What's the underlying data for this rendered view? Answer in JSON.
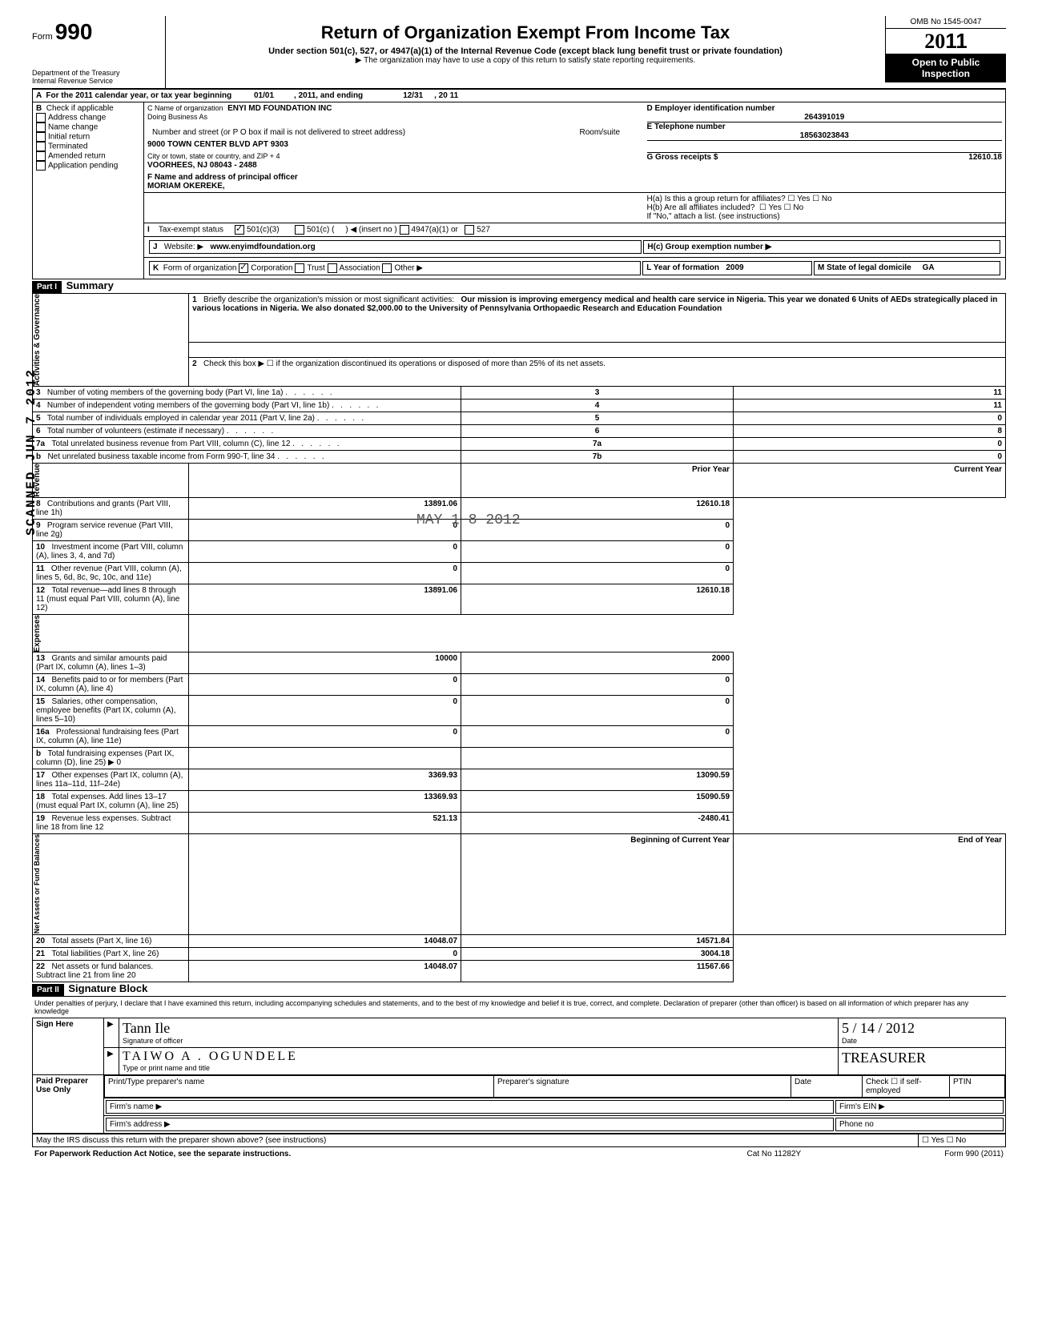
{
  "form": {
    "number_prefix": "Form",
    "number": "990",
    "title": "Return of Organization Exempt From Income Tax",
    "subtitle": "Under section 501(c), 527, or 4947(a)(1) of the Internal Revenue Code (except black lung benefit trust or private foundation)",
    "note": "▶ The organization may have to use a copy of this return to satisfy state reporting requirements.",
    "dept1": "Department of the Treasury",
    "dept2": "Internal Revenue Service",
    "omb": "OMB No  1545-0047",
    "year": "2011",
    "open": "Open to Public Inspection"
  },
  "header": {
    "A": "For the 2011 calendar year, or tax year beginning",
    "A_begin": "01/01",
    "A_mid": ", 2011, and ending",
    "A_end": "12/31",
    "A_y": ", 20",
    "A_yval": "11",
    "B": "Check if applicable",
    "B_items": [
      "Address change",
      "Name change",
      "Initial return",
      "Terminated",
      "Amended return",
      "Application pending"
    ],
    "C": "C Name of organization",
    "C_val": "ENYI MD FOUNDATION INC",
    "C_dba": "Doing Business As",
    "C_addr_label": "Number and street (or P O  box if mail is not delivered to street address)",
    "C_room": "Room/suite",
    "C_addr": "9000 TOWN CENTER BLVD APT 9303",
    "C_city_label": "City or town, state or country, and ZIP + 4",
    "C_city": "VOORHEES, NJ 08043 - 2488",
    "D": "D Employer identification number",
    "D_val": "264391019",
    "E": "E Telephone number",
    "E_val": "18563023843",
    "F": "F Name and address of principal officer",
    "F_val": "MORIAM OKEREKE,",
    "G": "G Gross receipts $",
    "G_val": "12610.18",
    "Ha": "H(a) Is this a group return for affiliates?",
    "Hb": "H(b) Are all affiliates included?",
    "H_yn": "☐ Yes  ☐ No",
    "H_note": "If \"No,\" attach a list. (see instructions)",
    "Hc": "H(c) Group exemption number ▶",
    "I": "Tax-exempt status",
    "I_501c3": "501(c)(3)",
    "I_501c": "501(c) (",
    "I_insert": ") ◀ (insert no )",
    "I_4947": "4947(a)(1) or",
    "I_527": "527",
    "J": "Website: ▶",
    "J_val": "www.enyimdfoundation.org",
    "K": "Form of organization",
    "K_items": [
      "Corporation",
      "Trust",
      "Association",
      "Other ▶"
    ],
    "L": "L Year of formation",
    "L_val": "2009",
    "M": "M State of legal domicile",
    "M_val": "GA"
  },
  "part1": {
    "title": "Part I",
    "subtitle": "Summary",
    "q1": "Briefly describe the organization's mission or most significant activities:",
    "q1_val": "Our mission is improving emergency medical and health care service in Nigeria. This year we donated 6 Units of AEDs strategically placed in various locations in Nigeria. We also donated $2,000.00 to the University of Pennsylvania Orthopaedic Research and Education Foundation",
    "q2": "Check this box ▶ ☐ if the organization discontinued its operations or disposed of more than 25% of its net assets.",
    "side_gov": "Activities & Governance",
    "side_rev": "Revenue",
    "side_exp": "Expenses",
    "side_net": "Net Assets or Fund Balances",
    "rows_gov": [
      {
        "n": "3",
        "t": "Number of voting members of the governing body (Part VI, line 1a)",
        "b": "3",
        "v": "11"
      },
      {
        "n": "4",
        "t": "Number of independent voting members of the governing body (Part VI, line 1b)",
        "b": "4",
        "v": "11"
      },
      {
        "n": "5",
        "t": "Total number of individuals employed in calendar year 2011 (Part V, line 2a)",
        "b": "5",
        "v": "0"
      },
      {
        "n": "6",
        "t": "Total number of volunteers (estimate if necessary)",
        "b": "6",
        "v": "8"
      },
      {
        "n": "7a",
        "t": "Total unrelated business revenue from Part VIII, column (C), line 12",
        "b": "7a",
        "v": "0"
      },
      {
        "n": "b",
        "t": "Net unrelated business taxable income from Form 990-T, line 34",
        "b": "7b",
        "v": "0"
      }
    ],
    "col_prior": "Prior Year",
    "col_curr": "Current Year",
    "rows_rev": [
      {
        "n": "8",
        "t": "Contributions and grants (Part VIII, line 1h)",
        "p": "13891.06",
        "c": "12610.18"
      },
      {
        "n": "9",
        "t": "Program service revenue (Part VIII, line 2g)",
        "p": "0",
        "c": "0"
      },
      {
        "n": "10",
        "t": "Investment income (Part VIII, column (A), lines 3, 4, and 7d)",
        "p": "0",
        "c": "0"
      },
      {
        "n": "11",
        "t": "Other revenue (Part VIII, column (A), lines 5, 6d, 8c, 9c, 10c, and 11e)",
        "p": "0",
        "c": "0"
      },
      {
        "n": "12",
        "t": "Total revenue—add lines 8 through 11 (must equal Part VIII, column (A), line 12)",
        "p": "13891.06",
        "c": "12610.18"
      }
    ],
    "rows_exp": [
      {
        "n": "13",
        "t": "Grants and similar amounts paid (Part IX, column (A), lines 1–3)",
        "p": "10000",
        "c": "2000"
      },
      {
        "n": "14",
        "t": "Benefits paid to or for members (Part IX, column (A), line 4)",
        "p": "0",
        "c": "0"
      },
      {
        "n": "15",
        "t": "Salaries, other compensation, employee benefits (Part IX, column (A), lines 5–10)",
        "p": "0",
        "c": "0"
      },
      {
        "n": "16a",
        "t": "Professional fundraising fees (Part IX, column (A),  line 11e)",
        "p": "0",
        "c": "0"
      },
      {
        "n": "b",
        "t": "Total fundraising expenses (Part IX, column (D), line 25) ▶                            0",
        "p": "",
        "c": ""
      },
      {
        "n": "17",
        "t": "Other expenses (Part IX, column (A), lines 11a–11d, 11f–24e)",
        "p": "3369.93",
        "c": "13090.59"
      },
      {
        "n": "18",
        "t": "Total expenses. Add lines 13–17 (must equal Part IX, column (A), line 25)",
        "p": "13369.93",
        "c": "15090.59"
      },
      {
        "n": "19",
        "t": "Revenue less expenses. Subtract line 18 from line 12",
        "p": "521.13",
        "c": "-2480.41"
      }
    ],
    "col_begin": "Beginning of Current Year",
    "col_end": "End of Year",
    "rows_net": [
      {
        "n": "20",
        "t": "Total assets (Part X, line 16)",
        "p": "14048.07",
        "c": "14571.84"
      },
      {
        "n": "21",
        "t": "Total liabilities (Part X, line 26)",
        "p": "0",
        "c": "3004.18"
      },
      {
        "n": "22",
        "t": "Net assets or fund balances. Subtract line 21 from line 20",
        "p": "14048.07",
        "c": "11567.66"
      }
    ],
    "stamp": "MAY 1 8 2012"
  },
  "part2": {
    "title": "Part II",
    "subtitle": "Signature Block",
    "decl": "Under penalties of perjury, I declare that I have examined this return, including accompanying schedules and statements, and to the best of my knowledge  and belief  it is true, correct, and complete. Declaration of preparer (other than officer) is based on all information of which preparer has any knowledge",
    "sign_here": "Sign Here",
    "sig_officer": "Signature of officer",
    "date": "Date",
    "date_val": "5 / 14 / 2012",
    "name_val": "TAIWO   A .  OGUNDELE",
    "title_val": "TREASURER",
    "type_name": "Type or print name and title",
    "paid": "Paid Preparer Use Only",
    "pt_name": "Print/Type preparer's name",
    "pt_sig": "Preparer's signature",
    "pt_date": "Date",
    "pt_check": "Check ☐ if self-employed",
    "ptin": "PTIN",
    "firm_name": "Firm's name    ▶",
    "firm_ein": "Firm's EIN ▶",
    "firm_addr": "Firm's address ▶",
    "phone": "Phone no",
    "irs_q": "May the IRS discuss this return with the preparer shown above? (see instructions)",
    "yn": "☐ Yes ☐ No",
    "footer_l": "For Paperwork Reduction Act Notice, see the separate instructions.",
    "footer_c": "Cat  No  11282Y",
    "footer_r": "Form 990 (2011)"
  },
  "watermark": "SCANNED JUN 7 2012"
}
